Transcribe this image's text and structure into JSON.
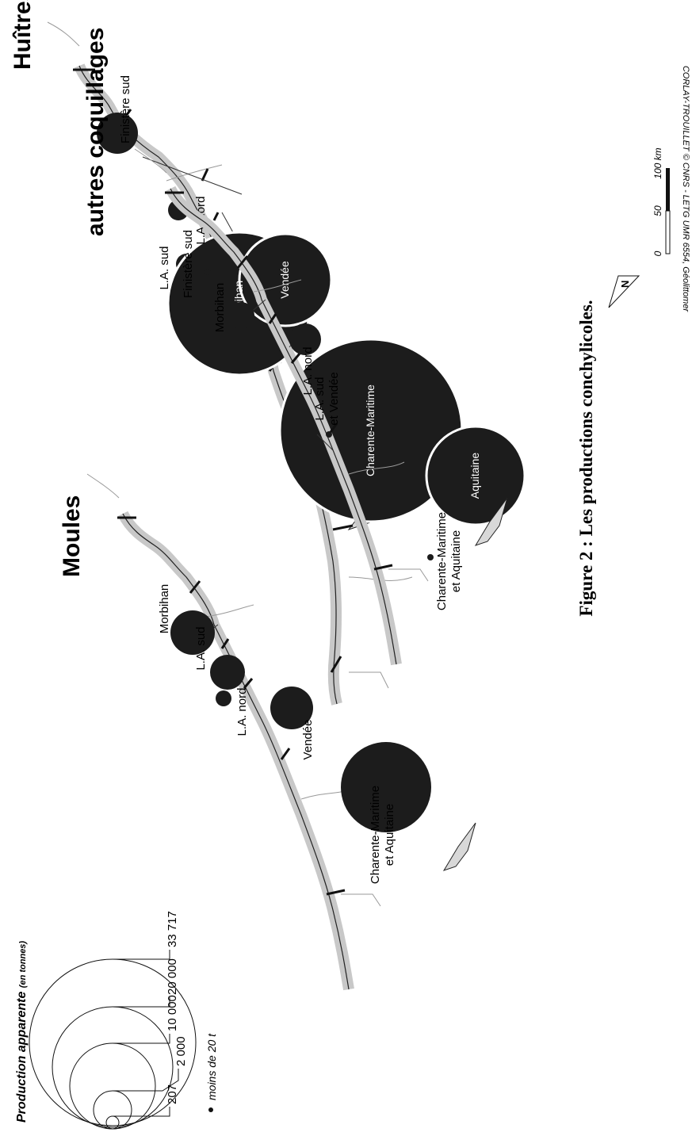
{
  "credit": "CORLAY-TROUILLET © CNRS - LETG UMR 6554, Géolittomer",
  "figure_title": "Figure 2 :  Les productions conchylicoles.",
  "maps": [
    {
      "title": "Huîtres",
      "regions": [
        {
          "label": "Finistère sud",
          "size": "big"
        },
        {
          "label": "L.A. nord",
          "size": "small"
        },
        {
          "label": "L.A. sud",
          "size": "small"
        },
        {
          "label": "Morbihan",
          "size": "big"
        },
        {
          "label": "Vendée",
          "size": "big"
        },
        {
          "label": "Charente-Maritime",
          "size": "big"
        },
        {
          "label": "Aquitaine",
          "size": "big"
        }
      ]
    },
    {
      "title": "Moules",
      "regions": [
        {
          "label": "Morbihan"
        },
        {
          "label": "L.A. nord"
        },
        {
          "label": "L.A. sud"
        },
        {
          "label": "Vendée"
        },
        {
          "label": "Charente-Maritime"
        },
        {
          "label": "et Aquitaine"
        }
      ]
    },
    {
      "title": "autres coquillages",
      "regions": [
        {
          "label": "Finistère sud"
        },
        {
          "label": "Morbihan"
        },
        {
          "label": "L.A. nord"
        },
        {
          "label": "L.A. sud"
        },
        {
          "label": "et Vendée"
        },
        {
          "label": "Charente-Maritime"
        },
        {
          "label": "et Aquitaine"
        }
      ]
    }
  ],
  "legend": {
    "title": "Production apparente",
    "unit": "(en tonnes)",
    "values": [
      "33 717",
      "20 000",
      "10 000",
      "2 000",
      "207"
    ],
    "small_marker": "moins de 20 t"
  },
  "scale": {
    "ticks": [
      "0",
      "50",
      "100 km"
    ],
    "north": "N"
  },
  "colors": {
    "symbol": "#1c1c1c",
    "coast_buffer": "#c8c8c8",
    "ink": "#111111"
  }
}
